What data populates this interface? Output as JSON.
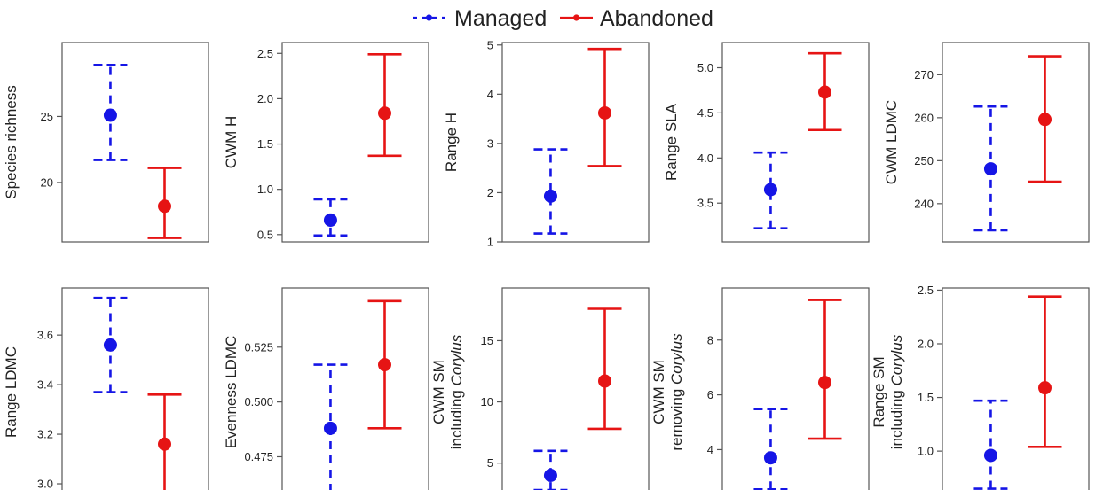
{
  "colors": {
    "managed": "#1515e6",
    "abandoned": "#e61414",
    "axis": "#555555",
    "text": "#222222"
  },
  "legend": {
    "managed_label": "Managed",
    "abandoned_label": "Abandoned",
    "placement": "top-center"
  },
  "chart_data": [
    {
      "type": "errorbar",
      "ylabel": "Species richness",
      "ylim": [
        15.5,
        30.6
      ],
      "ticks": [
        20,
        25
      ],
      "series": [
        {
          "name": "Managed",
          "mean": 25.1,
          "lower": 21.7,
          "upper": 28.9
        },
        {
          "name": "Abandoned",
          "mean": 18.2,
          "lower": 15.8,
          "upper": 21.1
        }
      ]
    },
    {
      "type": "errorbar",
      "ylabel": "CWM H",
      "ylim": [
        0.42,
        2.62
      ],
      "ticks": [
        0.5,
        1.0,
        1.5,
        2.0,
        2.5
      ],
      "tick_labels": [
        "0.5",
        "1.0",
        "1.5",
        "2.0",
        "2.5"
      ],
      "series": [
        {
          "name": "Managed",
          "mean": 0.66,
          "lower": 0.49,
          "upper": 0.89
        },
        {
          "name": "Abandoned",
          "mean": 1.84,
          "lower": 1.37,
          "upper": 2.49
        }
      ]
    },
    {
      "type": "errorbar",
      "ylabel": "Range H",
      "ylim": [
        1.0,
        5.05
      ],
      "ticks": [
        1,
        2,
        3,
        4,
        5
      ],
      "series": [
        {
          "name": "Managed",
          "mean": 1.93,
          "lower": 1.17,
          "upper": 2.88
        },
        {
          "name": "Abandoned",
          "mean": 3.62,
          "lower": 2.54,
          "upper": 4.92
        }
      ]
    },
    {
      "type": "errorbar",
      "ylabel": "Range SLA",
      "ylim": [
        3.07,
        5.28
      ],
      "ticks": [
        3.5,
        4.0,
        4.5,
        5.0
      ],
      "tick_labels": [
        "3.5",
        "4.0",
        "4.5",
        "5.0"
      ],
      "series": [
        {
          "name": "Managed",
          "mean": 3.65,
          "lower": 3.22,
          "upper": 4.06
        },
        {
          "name": "Abandoned",
          "mean": 4.73,
          "lower": 4.31,
          "upper": 5.16
        }
      ]
    },
    {
      "type": "errorbar",
      "ylabel": "CWM LDMC",
      "ylim": [
        231.1,
        277.5
      ],
      "ticks": [
        240,
        250,
        260,
        270
      ],
      "series": [
        {
          "name": "Managed",
          "mean": 248.1,
          "lower": 233.8,
          "upper": 262.6
        },
        {
          "name": "Abandoned",
          "mean": 259.6,
          "lower": 245.1,
          "upper": 274.3
        }
      ]
    },
    {
      "type": "errorbar",
      "ylabel": "Range LDMC",
      "ylim": [
        2.95,
        3.79
      ],
      "ticks": [
        3.0,
        3.2,
        3.4,
        3.6
      ],
      "tick_labels": [
        "3.0",
        "3.2",
        "3.4",
        "3.6"
      ],
      "series": [
        {
          "name": "Managed",
          "mean": 3.56,
          "lower": 3.37,
          "upper": 3.75
        },
        {
          "name": "Abandoned",
          "mean": 3.16,
          "lower": 2.97,
          "upper": 3.36
        }
      ]
    },
    {
      "type": "errorbar",
      "ylabel": "Evenness LDMC",
      "ylim": [
        0.457,
        0.552
      ],
      "ticks": [
        0.475,
        0.5,
        0.525
      ],
      "tick_labels": [
        "0.475",
        "0.500",
        "0.525"
      ],
      "series": [
        {
          "name": "Managed",
          "mean": 0.488,
          "lower": 0.459,
          "upper": 0.517
        },
        {
          "name": "Abandoned",
          "mean": 0.517,
          "lower": 0.488,
          "upper": 0.546
        }
      ]
    },
    {
      "type": "errorbar",
      "ylabel_lines": [
        "CWM SM",
        "including Corylus"
      ],
      "ylabel_italic": "Corylus",
      "ylim": [
        2.3,
        19.3
      ],
      "ticks": [
        5,
        10,
        15
      ],
      "series": [
        {
          "name": "Managed",
          "mean": 4.0,
          "lower": 2.8,
          "upper": 6.0
        },
        {
          "name": "Abandoned",
          "mean": 11.7,
          "lower": 7.8,
          "upper": 17.6
        }
      ]
    },
    {
      "type": "errorbar",
      "ylabel_lines": [
        "CWM SM",
        "removing Corylus"
      ],
      "ylabel_italic": "Corylus",
      "ylim": [
        2.3,
        9.9
      ],
      "ticks": [
        4,
        6,
        8
      ],
      "series": [
        {
          "name": "Managed",
          "mean": 3.7,
          "lower": 2.55,
          "upper": 5.48
        },
        {
          "name": "Abandoned",
          "mean": 6.45,
          "lower": 4.4,
          "upper": 9.46
        }
      ]
    },
    {
      "type": "errorbar",
      "ylabel_lines": [
        "Range SM",
        "including Corylus"
      ],
      "ylabel_italic": "Corylus",
      "ylim": [
        0.58,
        2.52
      ],
      "ticks": [
        1.0,
        1.5,
        2.0,
        2.5
      ],
      "tick_labels": [
        "1.0",
        "1.5",
        "2.0",
        "2.5"
      ],
      "series": [
        {
          "name": "Managed",
          "mean": 0.96,
          "lower": 0.65,
          "upper": 1.47
        },
        {
          "name": "Abandoned",
          "mean": 1.59,
          "lower": 1.04,
          "upper": 2.44
        }
      ]
    }
  ]
}
